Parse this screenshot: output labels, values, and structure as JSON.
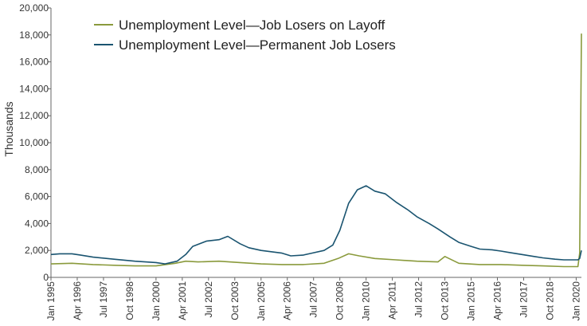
{
  "chart_data": {
    "type": "line",
    "title": "",
    "xlabel": "",
    "ylabel": "Thousands",
    "ylim": [
      0,
      20000
    ],
    "yticks": [
      0,
      2000,
      4000,
      6000,
      8000,
      10000,
      12000,
      14000,
      16000,
      18000,
      20000
    ],
    "ytick_labels": [
      "0",
      "2,000",
      "4,000",
      "6,000",
      "8,000",
      "10,000",
      "12,000",
      "14,000",
      "16,000",
      "18,000",
      "20,000"
    ],
    "x_range": [
      "1995-01",
      "2020-04"
    ],
    "xtick_labels": [
      "Jan 1995",
      "Apr 1996",
      "Jul 1997",
      "Oct 1998",
      "Jan 2000",
      "Apr 2001",
      "Jul 2002",
      "Oct 2003",
      "Jan 2005",
      "Apr 2006",
      "Jul 2007",
      "Oct 2008",
      "Jan 2010",
      "Apr 2011",
      "Jul 2012",
      "Oct 2013",
      "Jan 2015",
      "Apr 2016",
      "Jul 2017",
      "Oct 2018",
      "Jan 2020"
    ],
    "grid": false,
    "legend_position": "top-left",
    "series": [
      {
        "name": "Unemployment Level—Job Losers on Layoff",
        "color": "#8a9a3c",
        "points": [
          [
            "1995-01",
            1000
          ],
          [
            "1996-01",
            1050
          ],
          [
            "1997-01",
            950
          ],
          [
            "1998-01",
            900
          ],
          [
            "1999-01",
            850
          ],
          [
            "2000-01",
            850
          ],
          [
            "2000-12",
            1050
          ],
          [
            "2001-06",
            1200
          ],
          [
            "2002-01",
            1150
          ],
          [
            "2003-01",
            1200
          ],
          [
            "2004-01",
            1100
          ],
          [
            "2005-01",
            1000
          ],
          [
            "2006-01",
            950
          ],
          [
            "2007-01",
            950
          ],
          [
            "2008-01",
            1050
          ],
          [
            "2008-09",
            1400
          ],
          [
            "2009-03",
            1750
          ],
          [
            "2009-09",
            1600
          ],
          [
            "2010-06",
            1400
          ],
          [
            "2011-06",
            1300
          ],
          [
            "2012-06",
            1200
          ],
          [
            "2013-06",
            1150
          ],
          [
            "2013-10",
            1550
          ],
          [
            "2014-06",
            1050
          ],
          [
            "2015-06",
            950
          ],
          [
            "2016-06",
            950
          ],
          [
            "2017-06",
            900
          ],
          [
            "2018-06",
            850
          ],
          [
            "2019-06",
            800
          ],
          [
            "2020-01",
            800
          ],
          [
            "2020-02",
            800
          ],
          [
            "2020-03",
            1800
          ],
          [
            "2020-04",
            18100
          ]
        ]
      },
      {
        "name": "Unemployment Level—Permanent Job Losers",
        "color": "#1a5470",
        "points": [
          [
            "1995-01",
            1700
          ],
          [
            "1995-06",
            1750
          ],
          [
            "1996-01",
            1750
          ],
          [
            "1996-06",
            1650
          ],
          [
            "1997-01",
            1500
          ],
          [
            "1998-01",
            1350
          ],
          [
            "1999-01",
            1200
          ],
          [
            "2000-01",
            1100
          ],
          [
            "2000-06",
            1000
          ],
          [
            "2001-01",
            1200
          ],
          [
            "2001-06",
            1700
          ],
          [
            "2001-10",
            2300
          ],
          [
            "2002-06",
            2700
          ],
          [
            "2003-01",
            2800
          ],
          [
            "2003-06",
            3050
          ],
          [
            "2004-01",
            2500
          ],
          [
            "2004-06",
            2200
          ],
          [
            "2005-01",
            2000
          ],
          [
            "2006-01",
            1800
          ],
          [
            "2006-06",
            1600
          ],
          [
            "2007-01",
            1650
          ],
          [
            "2007-06",
            1800
          ],
          [
            "2008-01",
            2000
          ],
          [
            "2008-06",
            2400
          ],
          [
            "2008-10",
            3500
          ],
          [
            "2009-03",
            5500
          ],
          [
            "2009-08",
            6500
          ],
          [
            "2010-01",
            6800
          ],
          [
            "2010-06",
            6400
          ],
          [
            "2010-12",
            6200
          ],
          [
            "2011-06",
            5600
          ],
          [
            "2012-01",
            5000
          ],
          [
            "2012-06",
            4500
          ],
          [
            "2013-01",
            4000
          ],
          [
            "2013-06",
            3600
          ],
          [
            "2014-01",
            3000
          ],
          [
            "2014-06",
            2600
          ],
          [
            "2015-01",
            2300
          ],
          [
            "2015-06",
            2100
          ],
          [
            "2016-01",
            2050
          ],
          [
            "2016-06",
            1950
          ],
          [
            "2017-01",
            1800
          ],
          [
            "2017-06",
            1700
          ],
          [
            "2018-01",
            1550
          ],
          [
            "2018-06",
            1450
          ],
          [
            "2019-01",
            1350
          ],
          [
            "2019-06",
            1300
          ],
          [
            "2020-01",
            1300
          ],
          [
            "2020-02",
            1300
          ],
          [
            "2020-03",
            1400
          ],
          [
            "2020-04",
            2000
          ]
        ]
      }
    ]
  }
}
